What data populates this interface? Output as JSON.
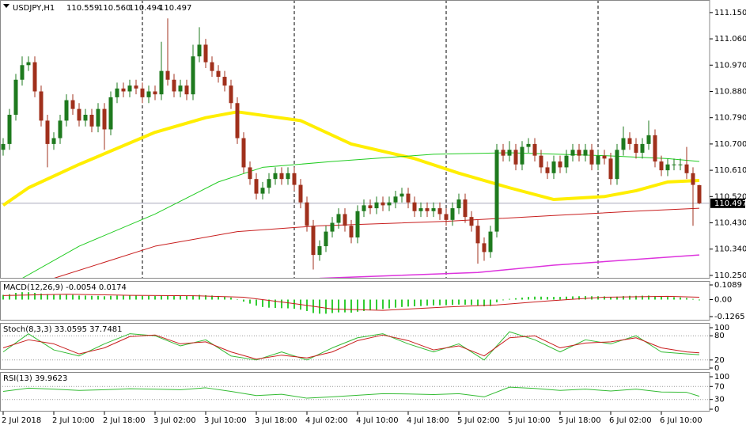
{
  "chart_data": [
    {
      "type": "candlestick",
      "title": "USDJPY,H1",
      "ohlc_labels": [
        "110.559",
        "110.560",
        "110.494",
        "110.497"
      ],
      "bull_color": "#1e7a1e",
      "bear_color": "#a0301c",
      "open": [
        110.68,
        110.7,
        110.8,
        110.92,
        110.97,
        110.98,
        110.88,
        110.78,
        110.7,
        110.72,
        110.78,
        110.85,
        110.82,
        110.78,
        110.8,
        110.76,
        110.82,
        110.75,
        110.86,
        110.89,
        110.88,
        110.9,
        110.89,
        110.86,
        110.88,
        110.87,
        110.95,
        110.92,
        110.88,
        110.9,
        110.87,
        111.0,
        111.04,
        110.98,
        110.95,
        110.93,
        110.9,
        110.84,
        110.72,
        110.62,
        110.58,
        110.53,
        110.55,
        110.58,
        110.6,
        110.58,
        110.6,
        110.56,
        110.5,
        110.42,
        110.32,
        110.35,
        110.4,
        110.43,
        110.46,
        110.42,
        110.38,
        110.47,
        110.49,
        110.48,
        110.5,
        110.49,
        110.5,
        110.52,
        110.53,
        110.5,
        110.47,
        110.48,
        110.47,
        110.48,
        110.46,
        110.44,
        110.48,
        110.51,
        110.45,
        110.42,
        110.36,
        110.33,
        110.4,
        110.68,
        110.66,
        110.68,
        110.63,
        110.69,
        110.7,
        110.66,
        110.62,
        110.6,
        110.64,
        110.62,
        110.66,
        110.68,
        110.66,
        110.68,
        110.63,
        110.66,
        110.65,
        110.58,
        110.68,
        110.72,
        110.7,
        110.67,
        110.7,
        110.73,
        110.64,
        110.61,
        110.63,
        110.63,
        110.63,
        110.6,
        110.559
      ],
      "high": [
        110.72,
        110.82,
        110.94,
        111.0,
        111.0,
        111.0,
        110.9,
        110.8,
        110.74,
        110.8,
        110.87,
        110.87,
        110.84,
        110.82,
        110.82,
        110.84,
        110.84,
        110.88,
        110.91,
        110.91,
        110.92,
        110.92,
        110.91,
        110.9,
        110.9,
        111.05,
        111.13,
        110.94,
        110.92,
        110.92,
        111.04,
        111.1,
        111.06,
        111.0,
        110.97,
        110.95,
        110.92,
        110.86,
        110.74,
        110.64,
        110.6,
        110.57,
        110.6,
        110.62,
        110.62,
        110.62,
        110.62,
        110.58,
        110.52,
        110.44,
        110.37,
        110.42,
        110.45,
        110.48,
        110.48,
        110.44,
        110.49,
        110.51,
        110.51,
        110.52,
        110.52,
        110.52,
        110.54,
        110.55,
        110.55,
        110.52,
        110.5,
        110.5,
        110.5,
        110.5,
        110.48,
        110.5,
        110.53,
        110.53,
        110.47,
        110.44,
        110.38,
        110.42,
        110.7,
        110.7,
        110.71,
        110.7,
        110.71,
        110.72,
        110.72,
        110.68,
        110.64,
        110.66,
        110.66,
        110.68,
        110.7,
        110.7,
        110.7,
        110.7,
        110.68,
        110.68,
        110.67,
        110.7,
        110.76,
        110.74,
        110.72,
        110.72,
        110.78,
        110.75,
        110.66,
        110.65,
        110.65,
        110.65,
        110.69,
        110.62,
        110.56
      ],
      "low": [
        110.66,
        110.68,
        110.78,
        110.9,
        110.95,
        110.86,
        110.76,
        110.62,
        110.68,
        110.7,
        110.76,
        110.8,
        110.76,
        110.76,
        110.74,
        110.74,
        110.68,
        110.73,
        110.84,
        110.86,
        110.86,
        110.87,
        110.84,
        110.84,
        110.85,
        110.85,
        110.9,
        110.86,
        110.86,
        110.85,
        110.85,
        110.98,
        110.96,
        110.93,
        110.91,
        110.88,
        110.82,
        110.7,
        110.6,
        110.56,
        110.51,
        110.51,
        110.53,
        110.56,
        110.56,
        110.56,
        110.54,
        110.48,
        110.4,
        110.27,
        110.3,
        110.33,
        110.38,
        110.41,
        110.4,
        110.36,
        110.36,
        110.45,
        110.46,
        110.46,
        110.47,
        110.47,
        110.48,
        110.5,
        110.48,
        110.45,
        110.45,
        110.45,
        110.45,
        110.44,
        110.42,
        110.42,
        110.46,
        110.43,
        110.4,
        110.29,
        110.3,
        110.31,
        110.38,
        110.64,
        110.64,
        110.61,
        110.61,
        110.67,
        110.64,
        110.6,
        110.58,
        110.58,
        110.6,
        110.6,
        110.64,
        110.64,
        110.64,
        110.61,
        110.61,
        110.63,
        110.56,
        110.56,
        110.66,
        110.68,
        110.65,
        110.65,
        110.68,
        110.62,
        110.59,
        110.59,
        110.61,
        110.61,
        110.58,
        110.42,
        110.494
      ],
      "close": [
        110.7,
        110.8,
        110.92,
        110.97,
        110.98,
        110.88,
        110.78,
        110.7,
        110.72,
        110.78,
        110.85,
        110.82,
        110.78,
        110.8,
        110.76,
        110.82,
        110.75,
        110.86,
        110.89,
        110.88,
        110.9,
        110.89,
        110.86,
        110.88,
        110.87,
        110.95,
        110.92,
        110.88,
        110.9,
        110.87,
        111.0,
        111.04,
        110.98,
        110.95,
        110.93,
        110.9,
        110.84,
        110.72,
        110.62,
        110.58,
        110.53,
        110.55,
        110.58,
        110.6,
        110.58,
        110.6,
        110.56,
        110.5,
        110.42,
        110.32,
        110.35,
        110.4,
        110.43,
        110.46,
        110.42,
        110.38,
        110.47,
        110.49,
        110.48,
        110.5,
        110.49,
        110.5,
        110.52,
        110.53,
        110.5,
        110.47,
        110.48,
        110.47,
        110.48,
        110.46,
        110.44,
        110.48,
        110.51,
        110.45,
        110.42,
        110.36,
        110.33,
        110.4,
        110.68,
        110.66,
        110.68,
        110.63,
        110.69,
        110.7,
        110.66,
        110.62,
        110.6,
        110.64,
        110.62,
        110.66,
        110.68,
        110.66,
        110.68,
        110.63,
        110.66,
        110.65,
        110.58,
        110.68,
        110.72,
        110.7,
        110.67,
        110.7,
        110.73,
        110.64,
        110.61,
        110.63,
        110.63,
        110.63,
        110.6,
        110.56,
        110.497
      ],
      "series": [
        {
          "color": "#ffee00",
          "x": [
            0,
            4,
            12,
            24,
            32,
            37,
            47,
            55,
            65,
            72,
            80,
            87,
            95,
            100,
            105,
            110
          ],
          "values": [
            110.49,
            110.55,
            110.63,
            110.74,
            110.79,
            110.81,
            110.78,
            110.7,
            110.65,
            110.6,
            110.55,
            110.51,
            110.52,
            110.54,
            110.57,
            110.575
          ]
        },
        {
          "color": "#22cc22",
          "x": [
            3,
            12,
            24,
            34,
            41,
            52,
            68,
            80,
            95,
            105,
            110
          ],
          "values": [
            110.24,
            110.35,
            110.46,
            110.57,
            110.62,
            110.64,
            110.665,
            110.67,
            110.66,
            110.65,
            110.64
          ]
        },
        {
          "color": "#c81e1e",
          "x": [
            8,
            24,
            37,
            50,
            70,
            87,
            100,
            110
          ],
          "values": [
            110.24,
            110.35,
            110.4,
            110.42,
            110.435,
            110.455,
            110.47,
            110.48
          ]
        },
        {
          "color": "#dd33dd",
          "x": [
            50,
            75,
            87,
            110
          ],
          "values": [
            110.24,
            110.26,
            110.285,
            110.32
          ]
        }
      ],
      "separators": [
        22,
        46,
        70,
        94
      ],
      "ylim": [
        110.239,
        111.193
      ],
      "yticks": [
        {
          "value": 111.15,
          "label": "111.150"
        },
        {
          "value": 111.06,
          "label": "111.060"
        },
        {
          "value": 110.97,
          "label": "110.970"
        },
        {
          "value": 110.88,
          "label": "110.880"
        },
        {
          "value": 110.79,
          "label": "110.790"
        },
        {
          "value": 110.7,
          "label": "110.700"
        },
        {
          "value": 110.61,
          "label": "110.610"
        },
        {
          "value": 110.52,
          "label": "110.520"
        },
        {
          "value": 110.43,
          "label": "110.430"
        },
        {
          "value": 110.34,
          "label": "110.340"
        },
        {
          "value": 110.25,
          "label": "110.250"
        }
      ],
      "xticks": [
        {
          "value": 0,
          "label": "2 Jul 2018"
        },
        {
          "value": 8,
          "label": "2 Jul 10:00"
        },
        {
          "value": 16,
          "label": "2 Jul 18:00"
        },
        {
          "value": 24,
          "label": "3 Jul 02:00"
        },
        {
          "value": 32,
          "label": "3 Jul 10:00"
        },
        {
          "value": 40,
          "label": "3 Jul 18:00"
        },
        {
          "value": 48,
          "label": "4 Jul 02:00"
        },
        {
          "value": 56,
          "label": "4 Jul 10:00"
        },
        {
          "value": 64,
          "label": "4 Jul 18:00"
        },
        {
          "value": 72,
          "label": "5 Jul 02:00"
        },
        {
          "value": 80,
          "label": "5 Jul 10:00"
        },
        {
          "value": 88,
          "label": "5 Jul 18:00"
        },
        {
          "value": 96,
          "label": "6 Jul 02:00"
        },
        {
          "value": 104,
          "label": "6 Jul 10:00"
        }
      ]
    },
    {
      "type": "macd",
      "title": "MACD(12,26,9) -0.0054 0.0174",
      "histogram_color": "#33cc33",
      "histogram": [
        0.035,
        0.04,
        0.05,
        0.055,
        0.055,
        0.05,
        0.045,
        0.04,
        0.035,
        0.035,
        0.035,
        0.035,
        0.03,
        0.03,
        0.028,
        0.028,
        0.025,
        0.028,
        0.03,
        0.03,
        0.03,
        0.03,
        0.028,
        0.028,
        0.027,
        0.03,
        0.03,
        0.028,
        0.028,
        0.027,
        0.032,
        0.035,
        0.033,
        0.03,
        0.027,
        0.022,
        0.015,
        0.0,
        -0.015,
        -0.03,
        -0.045,
        -0.055,
        -0.06,
        -0.062,
        -0.064,
        -0.065,
        -0.068,
        -0.075,
        -0.085,
        -0.1,
        -0.105,
        -0.105,
        -0.1,
        -0.095,
        -0.095,
        -0.097,
        -0.09,
        -0.085,
        -0.08,
        -0.075,
        -0.07,
        -0.065,
        -0.06,
        -0.055,
        -0.052,
        -0.05,
        -0.048,
        -0.045,
        -0.043,
        -0.042,
        -0.042,
        -0.04,
        -0.037,
        -0.038,
        -0.04,
        -0.045,
        -0.05,
        -0.048,
        -0.02,
        -0.005,
        0.005,
        0.01,
        0.015,
        0.02,
        0.022,
        0.022,
        0.02,
        0.02,
        0.02,
        0.022,
        0.024,
        0.025,
        0.026,
        0.025,
        0.025,
        0.024,
        0.02,
        0.022,
        0.026,
        0.028,
        0.028,
        0.029,
        0.03,
        0.026,
        0.022,
        0.02,
        0.018,
        0.016,
        0.012,
        0.005,
        -0.0054
      ],
      "series": [
        {
          "color": "#c81e1e",
          "x": [
            0,
            10,
            20,
            30,
            38,
            46,
            52,
            60,
            70,
            78,
            86,
            95,
            105,
            110
          ],
          "values": [
            0.03,
            0.04,
            0.032,
            0.029,
            0.018,
            -0.03,
            -0.07,
            -0.08,
            -0.055,
            -0.04,
            -0.01,
            0.018,
            0.024,
            0.0174
          ]
        }
      ],
      "ylim": [
        -0.1559,
        0.1383
      ],
      "yticks": [
        0.1089,
        {
          "value": 0,
          "label": "0.00"
        },
        -0.1265
      ]
    },
    {
      "type": "line",
      "title": "Stoch(8,3,3) 33.0595 37.7481",
      "x": [
        0,
        4,
        8,
        12,
        16,
        20,
        24,
        28,
        32,
        36,
        40,
        44,
        48,
        52,
        56,
        60,
        64,
        68,
        72,
        76,
        80,
        84,
        88,
        92,
        96,
        100,
        104,
        108,
        110
      ],
      "series": [
        {
          "color": "#33bb33",
          "values": [
            40,
            85,
            45,
            30,
            60,
            85,
            80,
            55,
            70,
            30,
            20,
            40,
            20,
            50,
            75,
            85,
            60,
            40,
            60,
            20,
            90,
            70,
            40,
            70,
            60,
            80,
            40,
            35,
            33.0595
          ]
        },
        {
          "color": "#c81e1e",
          "values": [
            50,
            70,
            60,
            35,
            50,
            78,
            82,
            60,
            65,
            40,
            22,
            32,
            25,
            40,
            68,
            82,
            68,
            45,
            55,
            30,
            75,
            80,
            50,
            62,
            65,
            75,
            50,
            40,
            37.7481
          ]
        }
      ],
      "levels": [
        80,
        20
      ],
      "ylim": [
        -3.9,
        111.8
      ],
      "yticks": [
        100,
        80,
        20,
        0
      ]
    },
    {
      "type": "line",
      "title": "RSI(13) 39.9623",
      "x": [
        0,
        4,
        8,
        12,
        16,
        20,
        24,
        28,
        32,
        36,
        40,
        44,
        48,
        52,
        56,
        60,
        64,
        68,
        72,
        76,
        80,
        84,
        88,
        92,
        96,
        100,
        104,
        108,
        110
      ],
      "series": [
        {
          "color": "#33bb33",
          "values": [
            55,
            65,
            62,
            58,
            60,
            63,
            62,
            60,
            66,
            55,
            42,
            46,
            34,
            38,
            43,
            48,
            47,
            45,
            48,
            38,
            68,
            64,
            58,
            62,
            56,
            62,
            53,
            52,
            39.9623
          ]
        }
      ],
      "levels": [
        70,
        30
      ],
      "ylim": [
        -7.3,
        114.6
      ],
      "yticks": [
        100,
        70,
        30,
        0
      ]
    }
  ]
}
